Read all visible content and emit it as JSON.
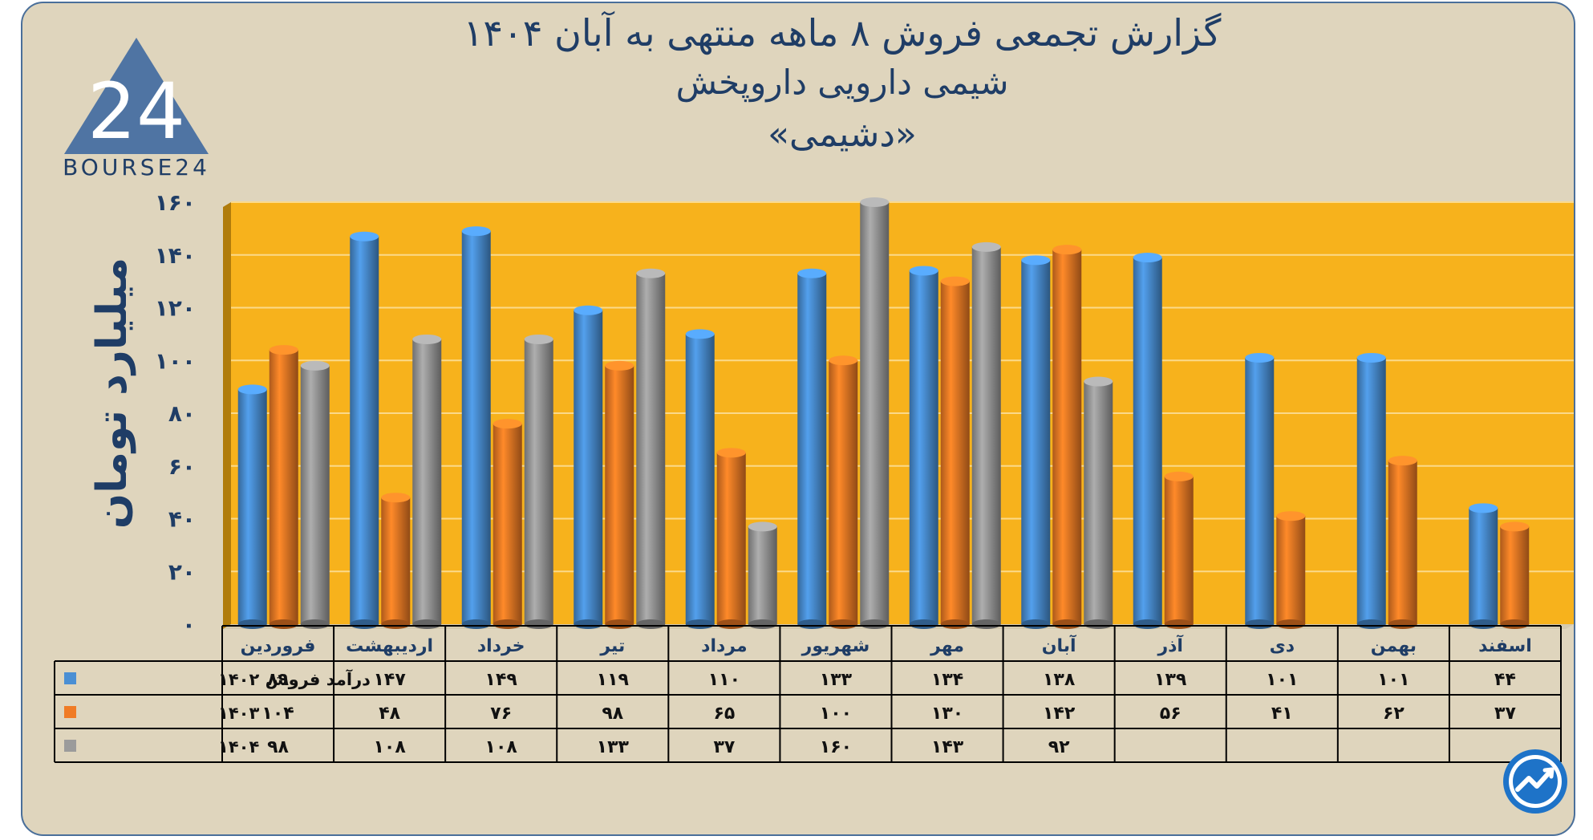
{
  "header": {
    "title_line1": "گزارش تجمعی فروش ۸ ماهه منتهی به آبان ۱۴۰۴",
    "title_line2": "شیمی دارویی داروپخش",
    "title_line3": "«دشیمی»",
    "logo_text": "BOURSE24",
    "logo_glyph": "24"
  },
  "colors": {
    "plot_bg": "#f7b21c",
    "series_1402": "#4a8fd4",
    "series_1403": "#f07b25",
    "series_1404": "#9b9b9b",
    "text": "#1f3d66"
  },
  "chart_data": {
    "type": "bar",
    "title": "گزارش تجمعی فروش ۸ ماهه منتهی به آبان ۱۴۰۴",
    "ylabel": "میلیارد تومان",
    "ylim": [
      0,
      160
    ],
    "yticks": [
      "۰",
      "۲۰",
      "۴۰",
      "۶۰",
      "۸۰",
      "۱۰۰",
      "۱۲۰",
      "۱۴۰",
      "۱۶۰"
    ],
    "ytick_values": [
      0,
      20,
      40,
      60,
      80,
      100,
      120,
      140,
      160
    ],
    "categories": [
      "فروردین",
      "اردیبهشت",
      "خرداد",
      "تیر",
      "مرداد",
      "شهریور",
      "مهر",
      "آبان",
      "آذر",
      "دی",
      "بهمن",
      "اسفند"
    ],
    "series": [
      {
        "name": "درآمد فروش ۱۴۰۲",
        "color": "#4a8fd4",
        "values": [
          89,
          147,
          149,
          119,
          110,
          133,
          134,
          138,
          139,
          101,
          101,
          44
        ],
        "labels": [
          "۸۹",
          "۱۴۷",
          "۱۴۹",
          "۱۱۹",
          "۱۱۰",
          "۱۳۳",
          "۱۳۴",
          "۱۳۸",
          "۱۳۹",
          "۱۰۱",
          "۱۰۱",
          "۴۴"
        ]
      },
      {
        "name": "۱۴۰۳",
        "color": "#f07b25",
        "values": [
          104,
          48,
          76,
          98,
          65,
          100,
          130,
          142,
          56,
          41,
          62,
          37
        ],
        "labels": [
          "۱۰۴",
          "۴۸",
          "۷۶",
          "۹۸",
          "۶۵",
          "۱۰۰",
          "۱۳۰",
          "۱۴۲",
          "۵۶",
          "۴۱",
          "۶۲",
          "۳۷"
        ]
      },
      {
        "name": "۱۴۰۴",
        "color": "#9b9b9b",
        "values": [
          98,
          108,
          108,
          133,
          37,
          160,
          143,
          92,
          null,
          null,
          null,
          null
        ],
        "labels": [
          "۹۸",
          "۱۰۸",
          "۱۰۸",
          "۱۳۳",
          "۳۷",
          "۱۶۰",
          "۱۴۳",
          "۹۲",
          "",
          "",
          "",
          ""
        ]
      }
    ]
  }
}
